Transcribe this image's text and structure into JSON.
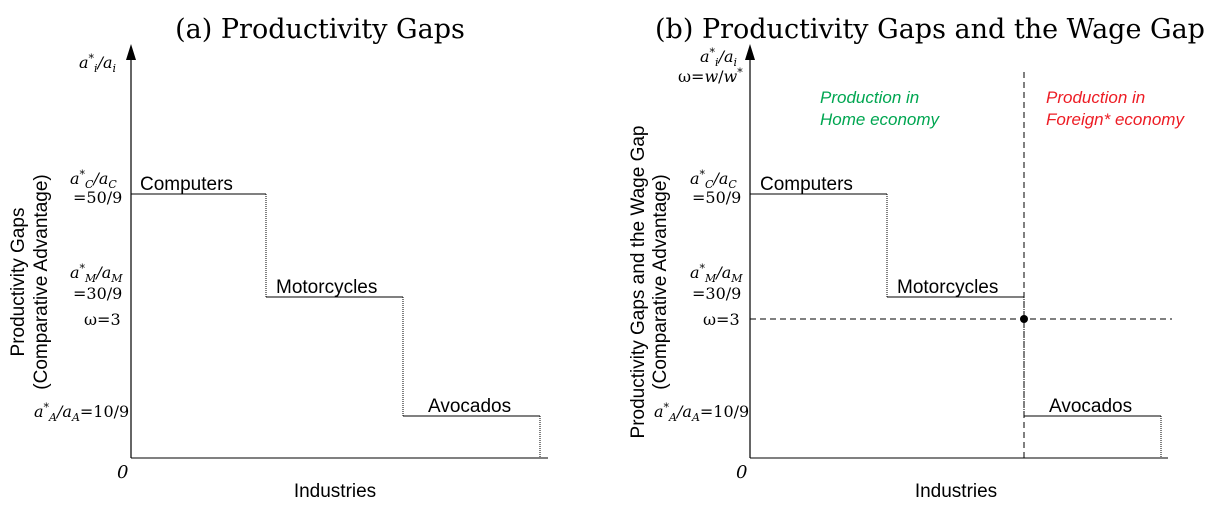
{
  "chart_data": [
    {
      "type": "line",
      "panel_title": "(a) Productivity Gaps",
      "ylabel_line1": "Productivity Gaps",
      "ylabel_line2": "(Comparative Advantage)",
      "y_axis_symbol": "a*i/ai",
      "xlabel": "Industries",
      "origin_label": "0",
      "industries": [
        {
          "name": "Computers",
          "value": 5.556,
          "tick_label_line1": "a*C/aC",
          "tick_label_line2": "=50/9"
        },
        {
          "name": "Motorcycles",
          "value": 3.333,
          "tick_label_line1": "a*M/aM",
          "tick_label_line2": "=30/9"
        },
        {
          "name": "Avocados",
          "value": 1.111,
          "tick_label_line1": "a*A/aA=10/9",
          "tick_label_line2": ""
        }
      ],
      "extra_tick": {
        "label": "ω=3",
        "value": 3
      }
    },
    {
      "type": "line",
      "panel_title": "(b) Productivity Gaps and the Wage Gap",
      "ylabel_line1": "Productivity Gaps and the Wage Gap",
      "ylabel_line2": "(Comparative Advantage)",
      "y_axis_symbol": "a*i/ai",
      "y_axis_symbol_2": "ω=w/w*",
      "xlabel": "Industries",
      "origin_label": "0",
      "industries": [
        {
          "name": "Computers",
          "value": 5.556,
          "tick_label_line1": "a*C/aC",
          "tick_label_line2": "=50/9"
        },
        {
          "name": "Motorcycles",
          "value": 3.333,
          "tick_label_line1": "a*M/aM",
          "tick_label_line2": "=30/9"
        },
        {
          "name": "Avocados",
          "value": 1.111,
          "tick_label_line1": "a*A/aA=10/9",
          "tick_label_line2": ""
        }
      ],
      "wage_line": {
        "label": "ω=3",
        "value": 3
      },
      "regions": [
        {
          "label_line1": "Production in",
          "label_line2": "Home economy",
          "color": "#00a651"
        },
        {
          "label_line1": "Production in",
          "label_line2": "Foreign* economy",
          "color": "#ed1c24"
        }
      ]
    }
  ]
}
